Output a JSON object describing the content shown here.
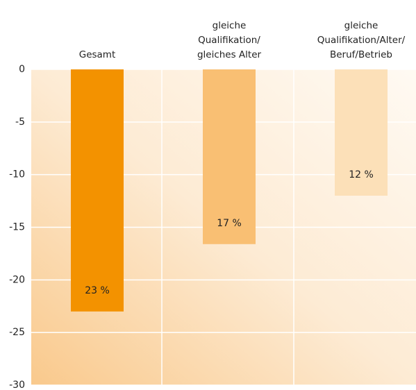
{
  "chart_data": {
    "type": "bar",
    "categories": [
      "Gesamt",
      "gleiche\nQualifikation/\ngleiches Alter",
      "gleiche\nQualifikation/Alter/\nBeruf/Betrieb"
    ],
    "values": [
      -23,
      -16.6,
      -12
    ],
    "value_labels": [
      "23 %",
      "17 %",
      "12 %"
    ],
    "colors": [
      "#f39200",
      "#f9bf73",
      "#fce0b8"
    ],
    "ylim": [
      -30,
      0
    ],
    "yticks": [
      0,
      -5,
      -10,
      -15,
      -20,
      -25,
      -30
    ],
    "grid": true
  }
}
